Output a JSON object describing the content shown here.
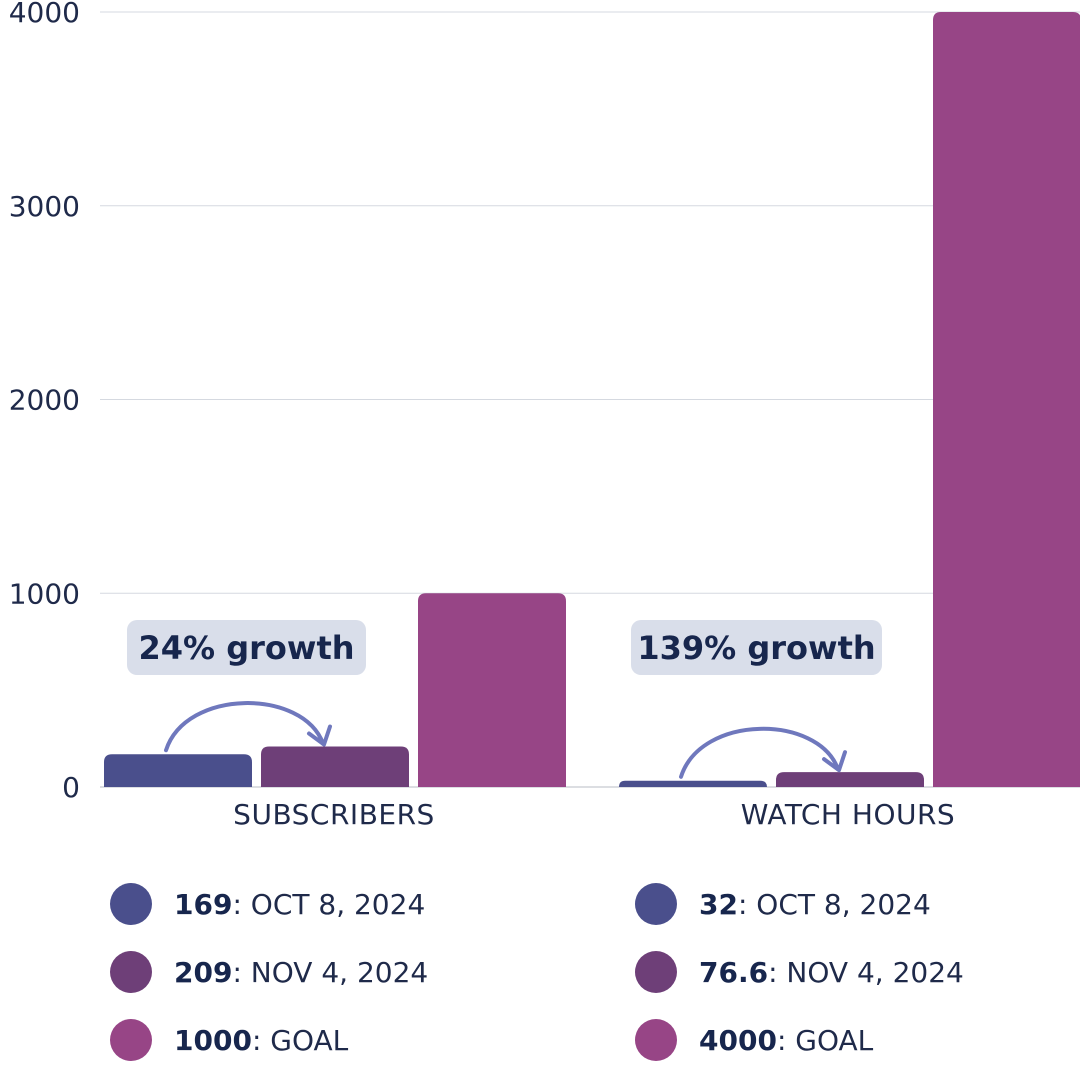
{
  "colors": {
    "oct": "#4a4f8c",
    "nov": "#6e3f78",
    "goal": "#974586",
    "callout_bg": "#d9deea",
    "arrow": "#6f78bd",
    "grid": "#d5d9e0"
  },
  "chart_data": {
    "type": "bar",
    "categories": [
      "SUBSCRIBERS",
      "WATCH HOURS"
    ],
    "series": [
      {
        "values": [
          169,
          32
        ]
      },
      {
        "values": [
          209,
          76.6
        ]
      },
      {
        "values": [
          1000,
          4000
        ]
      }
    ],
    "ylim": [
      0,
      4000
    ],
    "yticks": [
      "0",
      "1000",
      "2000",
      "3000",
      "4000"
    ],
    "grid": true,
    "annotations": [
      "24% growth",
      "139% growth"
    ]
  },
  "legend": {
    "columns": [
      [
        {
          "value": "169",
          "text": ": OCT 8, 2024",
          "series": 0
        },
        {
          "value": "209",
          "text": ": NOV 4, 2024",
          "series": 1
        },
        {
          "value": "1000",
          "text": ": GOAL",
          "series": 2
        }
      ],
      [
        {
          "value": "32",
          "text": ": OCT 8, 2024",
          "series": 0
        },
        {
          "value": "76.6",
          "text": ": NOV 4, 2024",
          "series": 1
        },
        {
          "value": "4000",
          "text": ": GOAL",
          "series": 2
        }
      ]
    ]
  }
}
